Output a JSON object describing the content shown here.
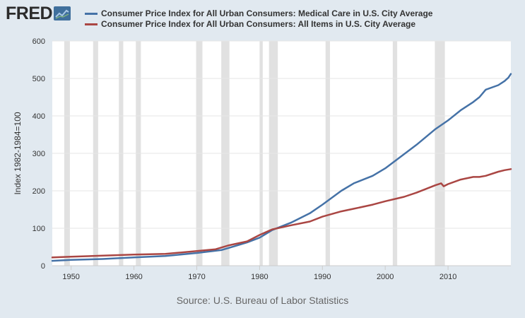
{
  "logo": {
    "text": "FRED"
  },
  "colors": {
    "background": "#e1e9f0",
    "plot_background": "#ffffff",
    "recession": "#e1e1e1",
    "grid": "#e6e6e6",
    "series_medical": "#4572a7",
    "series_all_items": "#aa4643"
  },
  "source": "Source: U.S. Bureau of Labor Statistics",
  "chart_data": {
    "type": "line",
    "title": "",
    "xlabel": "",
    "ylabel": "Index 1982-1984=100",
    "xlim": [
      1947,
      2020
    ],
    "ylim": [
      0,
      600
    ],
    "x_ticks": [
      "1950",
      "1960",
      "1970",
      "1980",
      "1990",
      "2000",
      "2010"
    ],
    "y_ticks": [
      "0",
      "100",
      "200",
      "300",
      "400",
      "500",
      "600"
    ],
    "recessions": [
      [
        1948.9,
        1949.8
      ],
      [
        1953.5,
        1954.3
      ],
      [
        1957.6,
        1958.3
      ],
      [
        1960.3,
        1961.1
      ],
      [
        1969.9,
        1970.9
      ],
      [
        1973.9,
        1975.2
      ],
      [
        1980.0,
        1980.5
      ],
      [
        1981.5,
        1982.9
      ],
      [
        1990.5,
        1991.2
      ],
      [
        2001.2,
        2001.9
      ],
      [
        2007.9,
        2009.5
      ]
    ],
    "series": [
      {
        "name": "Consumer Price Index for All Urban Consumers: Medical Care in U.S. City Average",
        "x": [
          1947,
          1950,
          1955,
          1960,
          1965,
          1970,
          1974,
          1976,
          1978,
          1980,
          1982,
          1985,
          1988,
          1990,
          1993,
          1995,
          1998,
          2000,
          2003,
          2005,
          2008,
          2010,
          2012,
          2014,
          2015,
          2016,
          2018,
          2019,
          2019.6,
          2020
        ],
        "values": [
          13,
          15.5,
          18,
          22,
          26,
          34,
          42,
          52,
          62,
          75,
          95,
          115,
          140,
          163,
          200,
          220,
          240,
          260,
          298,
          323,
          365,
          388,
          415,
          437,
          450,
          470,
          482,
          493,
          502,
          512
        ]
      },
      {
        "name": "Consumer Price Index for All Urban Consumers: All Items in U.S. City Average",
        "x": [
          1947,
          1950,
          1955,
          1960,
          1965,
          1970,
          1973,
          1975,
          1978,
          1980,
          1982,
          1985,
          1988,
          1990,
          1993,
          1995,
          1998,
          2000,
          2003,
          2005,
          2008,
          2008.9,
          2009.3,
          2010,
          2012,
          2014,
          2015,
          2016,
          2018,
          2019,
          2020
        ],
        "values": [
          22,
          24,
          27,
          29.6,
          31.5,
          39,
          44,
          54,
          65,
          82,
          97,
          108,
          118,
          131,
          145,
          152,
          163,
          172,
          184,
          195,
          215,
          220,
          212,
          218,
          230,
          237,
          237,
          240,
          251,
          255,
          258
        ]
      }
    ]
  }
}
